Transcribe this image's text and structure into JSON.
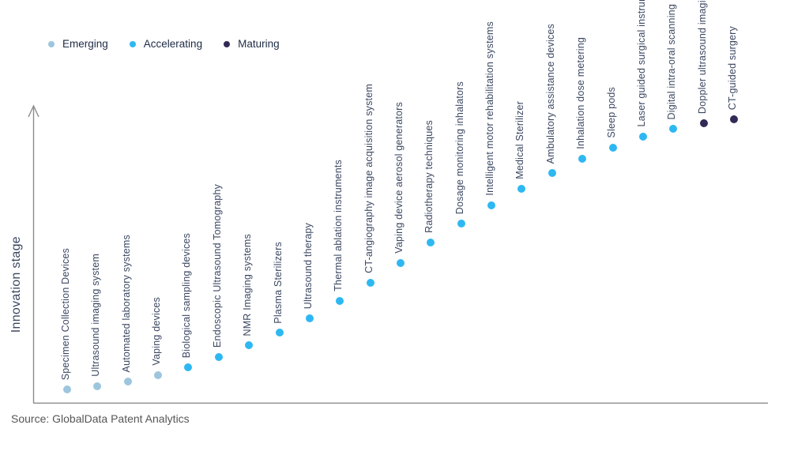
{
  "chart_data": {
    "type": "scatter",
    "title": "",
    "xlabel": "",
    "ylabel": "Innovation stage",
    "source": "Source: GlobalData Patent Analytics",
    "grid": false,
    "legend_position": "top-left",
    "axis_note": "y axis is unlabeled qualitative scale with upward arrow; innovation_level values are 0-100 estimates read from dot heights",
    "legend": [
      {
        "label": "Emerging",
        "color": "#9dc6de"
      },
      {
        "label": "Accelerating",
        "color": "#2eb8f2"
      },
      {
        "label": "Maturing",
        "color": "#322a56"
      }
    ],
    "stage_colors": {
      "Emerging": "#9dc6de",
      "Accelerating": "#2eb8f2",
      "Maturing": "#322a56"
    },
    "points": [
      {
        "label": "Specimen Collection Devices",
        "stage": "Emerging",
        "innovation_level": 4.6
      },
      {
        "label": "Ultrasound imaging system",
        "stage": "Emerging",
        "innovation_level": 5.7
      },
      {
        "label": "Automated laboratory systems",
        "stage": "Emerging",
        "innovation_level": 7.3
      },
      {
        "label": "Vaping devices",
        "stage": "Emerging",
        "innovation_level": 9.5
      },
      {
        "label": "Biological sampling devices",
        "stage": "Accelerating",
        "innovation_level": 12.2
      },
      {
        "label": "Endoscopic Ultrasound Tomography",
        "stage": "Accelerating",
        "innovation_level": 15.7
      },
      {
        "label": "NMR Imaging systems",
        "stage": "Accelerating",
        "innovation_level": 19.7
      },
      {
        "label": "Plasma Sterilizers",
        "stage": "Accelerating",
        "innovation_level": 24.0
      },
      {
        "label": "Ultrasound therapy",
        "stage": "Accelerating",
        "innovation_level": 28.9
      },
      {
        "label": "Thermal ablation instruments",
        "stage": "Accelerating",
        "innovation_level": 34.9
      },
      {
        "label": "CT-angiography image acquisition system",
        "stage": "Accelerating",
        "innovation_level": 41.1
      },
      {
        "label": "Vaping device aerosol generators",
        "stage": "Accelerating",
        "innovation_level": 47.8
      },
      {
        "label": "Radiotherapy techniques",
        "stage": "Accelerating",
        "innovation_level": 54.9
      },
      {
        "label": "Dosage monitoring inhalators",
        "stage": "Accelerating",
        "innovation_level": 61.4
      },
      {
        "label": "Intelligent motor rehabilitation systems",
        "stage": "Accelerating",
        "innovation_level": 67.6
      },
      {
        "label": "Medical Sterilizer",
        "stage": "Accelerating",
        "innovation_level": 73.2
      },
      {
        "label": "Ambulatory assistance devices",
        "stage": "Accelerating",
        "innovation_level": 78.6
      },
      {
        "label": "Inhalation dose metering",
        "stage": "Accelerating",
        "innovation_level": 83.5
      },
      {
        "label": "Sleep pods",
        "stage": "Accelerating",
        "innovation_level": 87.3
      },
      {
        "label": "Laser guided surgical instruments",
        "stage": "Accelerating",
        "innovation_level": 91.1
      },
      {
        "label": "Digital intra-oral scanning",
        "stage": "Accelerating",
        "innovation_level": 93.8
      },
      {
        "label": "Doppler ultrasound imaging",
        "stage": "Maturing",
        "innovation_level": 95.7
      },
      {
        "label": "CT-guided surgery",
        "stage": "Maturing",
        "innovation_level": 97.0
      }
    ]
  }
}
